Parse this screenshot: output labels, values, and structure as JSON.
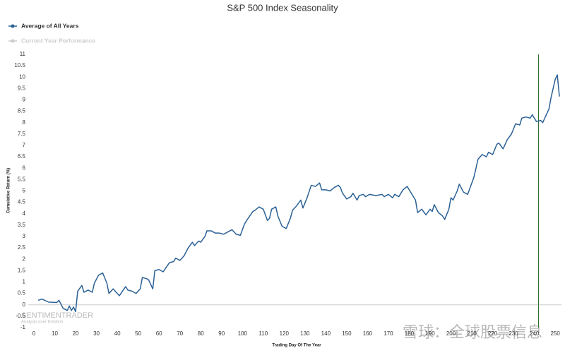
{
  "chart_data": {
    "type": "line",
    "title": "S&P 500 Index Seasonality",
    "xlabel": "Trading Day Of The Year",
    "ylabel": "Cumulative Return (%)",
    "x": [
      2,
      4,
      7,
      11,
      12,
      14,
      16,
      17,
      18,
      19,
      20,
      21,
      23,
      24,
      26,
      28,
      29,
      31,
      33,
      35,
      36,
      38,
      40,
      41,
      44,
      45,
      47,
      49,
      51,
      52,
      54,
      55,
      57,
      58,
      60,
      62,
      65,
      67,
      68,
      70,
      72,
      74,
      76,
      77,
      79,
      80,
      82,
      83,
      85,
      87,
      89,
      91,
      94,
      95,
      97,
      99,
      101,
      102,
      105,
      106,
      108,
      110,
      112,
      113,
      114,
      116,
      117,
      119,
      121,
      123,
      124,
      126,
      128,
      129,
      131,
      133,
      135,
      137,
      138,
      140,
      142,
      144,
      146,
      147,
      148,
      150,
      152,
      153,
      155,
      156,
      158,
      159,
      161,
      164,
      167,
      168,
      170,
      172,
      173,
      175,
      177,
      179,
      181,
      183,
      184,
      186,
      188,
      190,
      191,
      192,
      194,
      196,
      197,
      199,
      200,
      201,
      203,
      204,
      206,
      208,
      210,
      211,
      213,
      215,
      217,
      218,
      220,
      222,
      223,
      225,
      227,
      229,
      231,
      233,
      234,
      236,
      238,
      239,
      241,
      243,
      244,
      246,
      247,
      248,
      250,
      251,
      252
    ],
    "series": [
      {
        "name": "Average of All Years",
        "color": "#2a6196",
        "values": [
          0.2,
          0.25,
          0.12,
          0.1,
          0.2,
          -0.15,
          -0.25,
          -0.05,
          -0.25,
          -0.1,
          -0.3,
          0.6,
          0.85,
          0.55,
          0.65,
          0.55,
          0.95,
          1.3,
          1.4,
          0.95,
          0.5,
          0.7,
          0.5,
          0.4,
          0.8,
          0.65,
          0.6,
          0.5,
          0.7,
          1.2,
          1.15,
          1.1,
          0.7,
          1.5,
          1.55,
          1.45,
          1.85,
          1.9,
          2.05,
          1.95,
          2.15,
          2.5,
          2.75,
          2.6,
          2.8,
          2.75,
          3.0,
          3.25,
          3.25,
          3.15,
          3.15,
          3.1,
          3.25,
          3.3,
          3.1,
          3.05,
          3.55,
          3.7,
          4.1,
          4.15,
          4.3,
          4.2,
          3.7,
          3.8,
          4.2,
          4.3,
          3.9,
          3.45,
          3.35,
          3.8,
          4.15,
          4.35,
          4.6,
          4.25,
          4.7,
          5.25,
          5.2,
          5.35,
          5.05,
          5.05,
          5.0,
          5.15,
          5.25,
          5.15,
          4.9,
          4.65,
          4.75,
          4.9,
          4.6,
          4.8,
          4.85,
          4.75,
          4.85,
          4.8,
          4.85,
          4.75,
          4.85,
          4.7,
          4.85,
          4.75,
          5.05,
          5.2,
          4.9,
          4.6,
          4.05,
          4.2,
          3.95,
          4.2,
          4.1,
          4.4,
          4.05,
          3.9,
          3.75,
          4.2,
          4.7,
          4.6,
          5.0,
          5.3,
          4.95,
          4.85,
          5.35,
          5.6,
          6.4,
          6.6,
          6.5,
          6.7,
          6.6,
          7.05,
          7.1,
          6.85,
          7.25,
          7.5,
          7.95,
          7.9,
          8.2,
          8.25,
          8.2,
          8.35,
          8.05,
          8.1,
          8.0,
          8.4,
          8.6,
          9.1,
          9.9,
          10.1,
          9.15
        ]
      }
    ],
    "inactive_legend": {
      "name": "Current Year Performance",
      "color": "#cccccc"
    },
    "xlim": [
      0,
      253
    ],
    "xticks": [
      0,
      10,
      20,
      30,
      40,
      50,
      60,
      70,
      80,
      90,
      100,
      110,
      120,
      130,
      140,
      150,
      160,
      170,
      180,
      190,
      200,
      210,
      220,
      230,
      240,
      250
    ],
    "ylim": [
      -1,
      11
    ],
    "yticks": [
      -1,
      -0.5,
      0,
      0.5,
      1,
      1.5,
      2,
      2.5,
      3,
      3.5,
      4,
      4.5,
      5,
      5.5,
      6,
      6.5,
      7,
      7.5,
      8,
      8.5,
      9,
      9.5,
      10,
      10.5,
      11
    ],
    "reference_line": 0,
    "vertical_marker": {
      "x": 242,
      "color": "#2e6b2e"
    },
    "watermarks": [
      "SENTIMENTRADER",
      "Analysis over Emotion",
      "雪球：全球股票信息"
    ]
  }
}
